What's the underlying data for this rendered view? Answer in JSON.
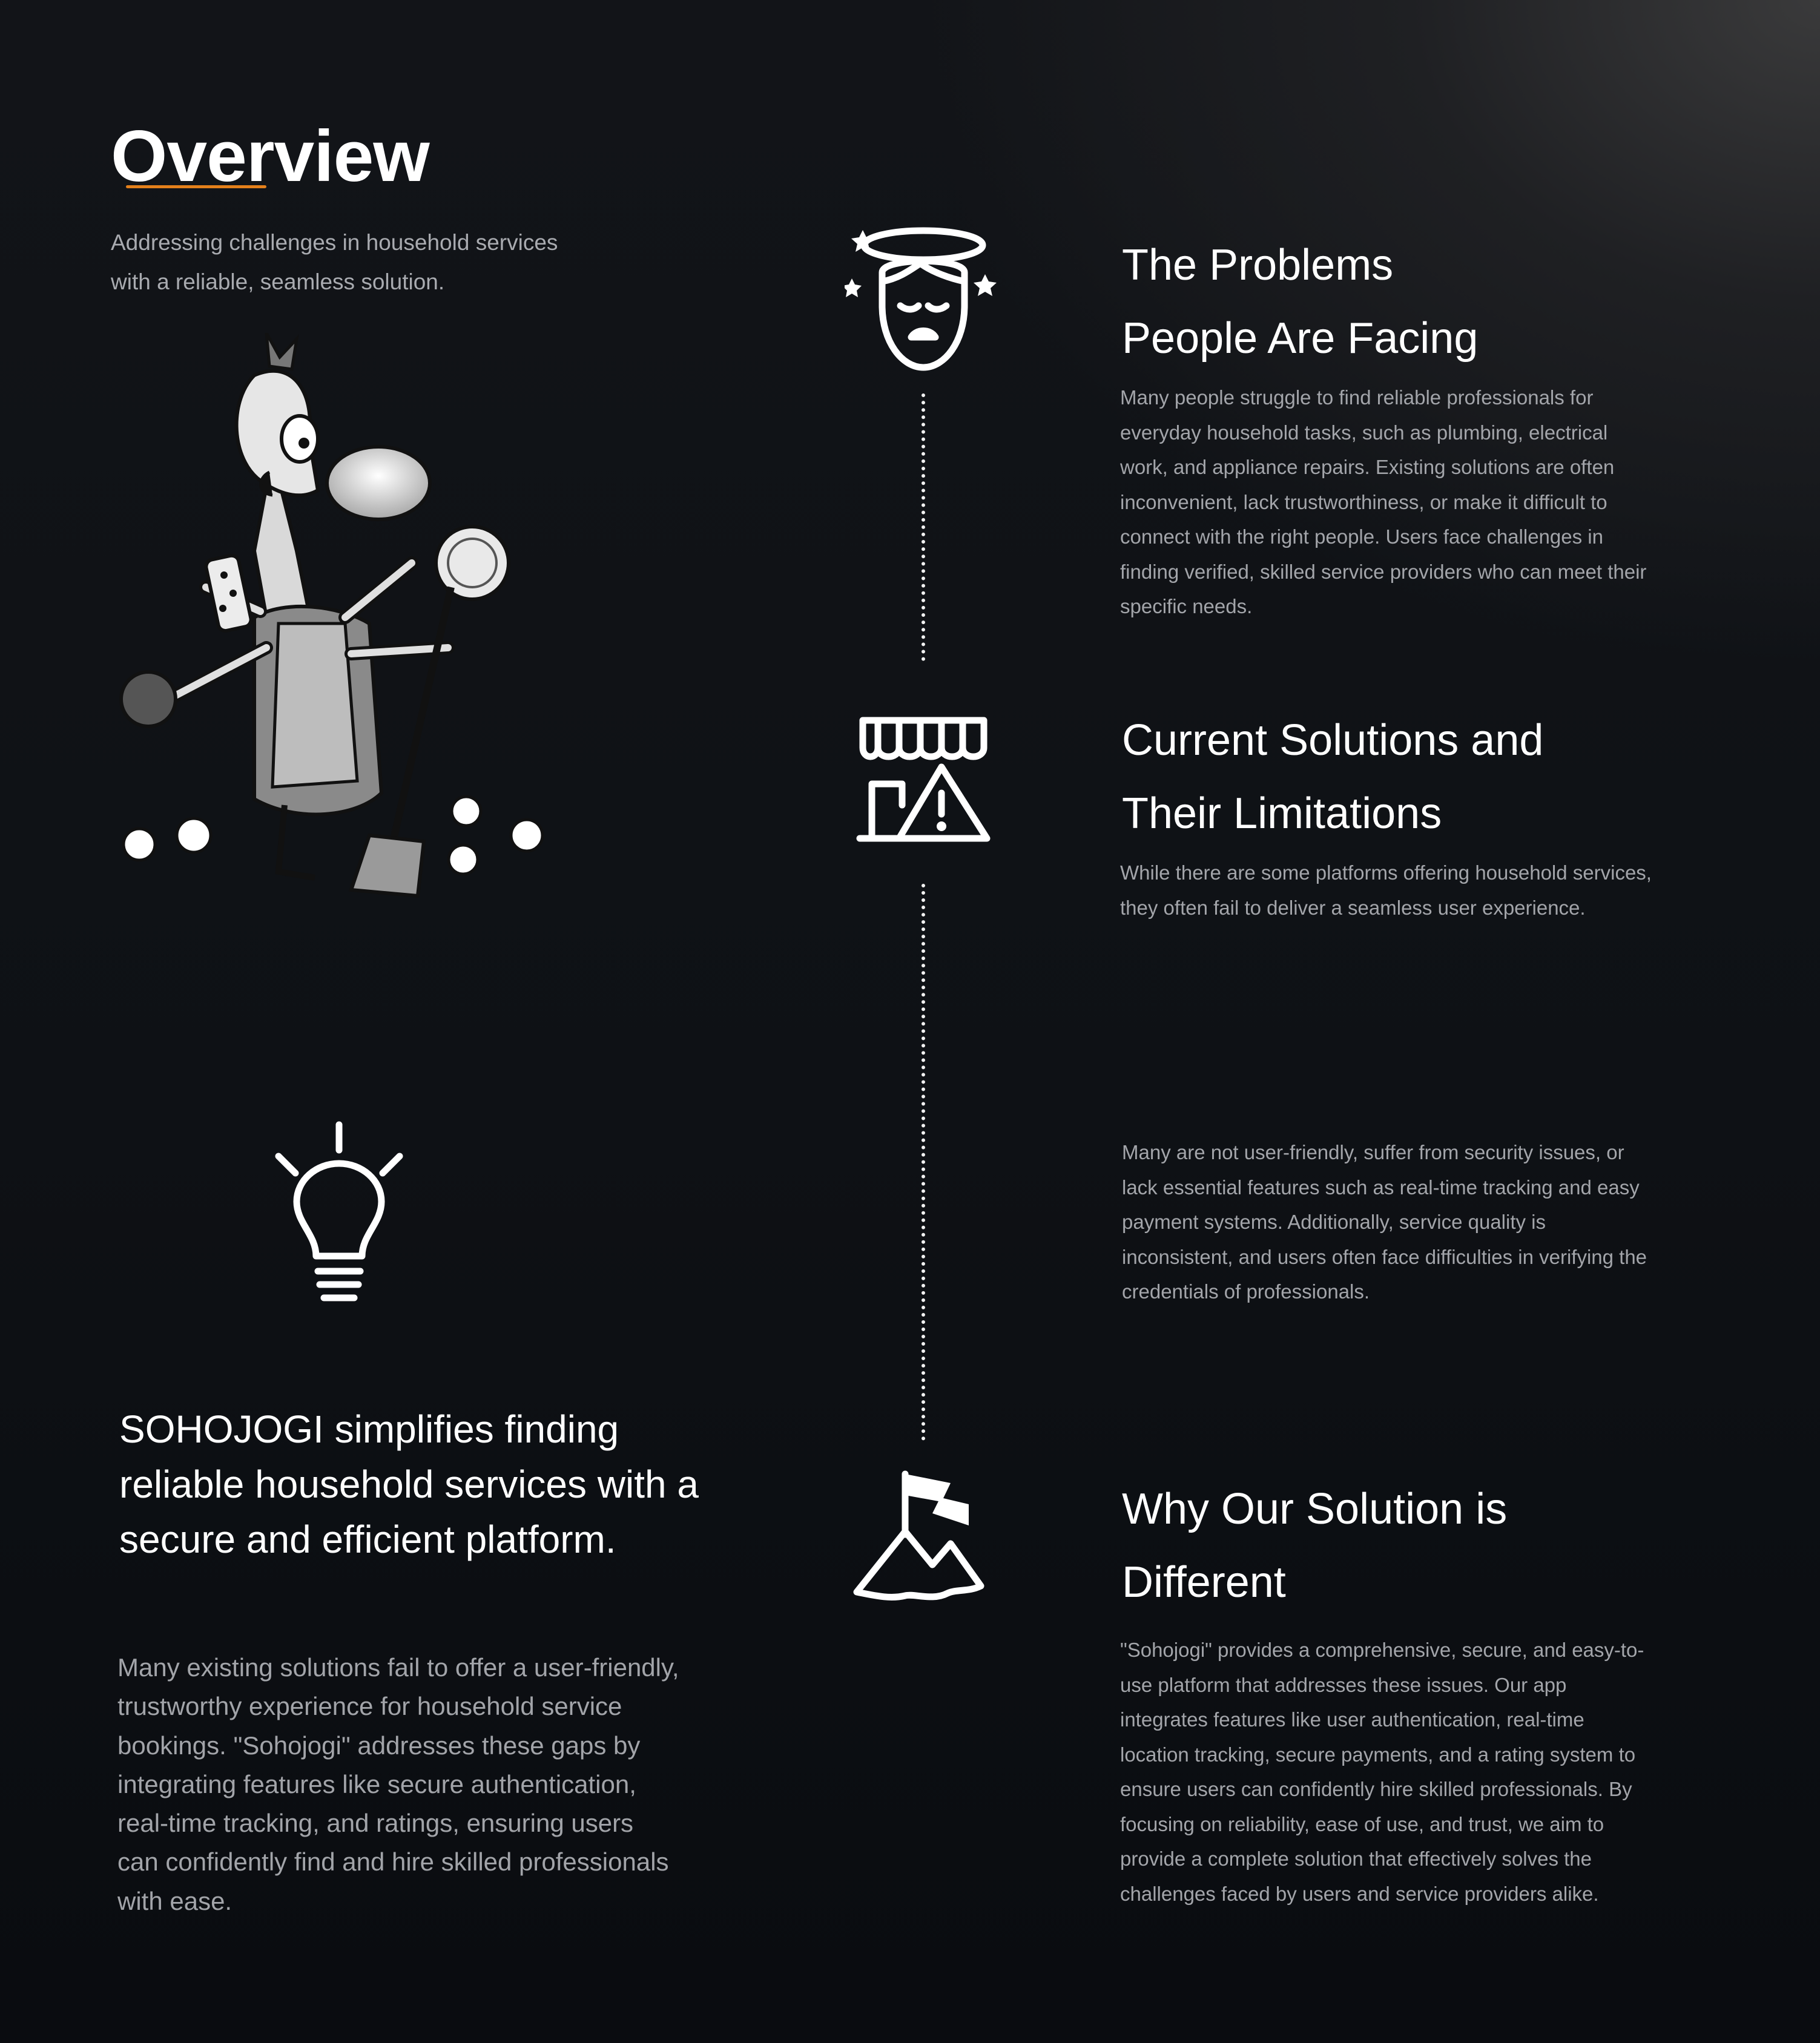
{
  "overview": {
    "title": "Overview",
    "subtitle": "Addressing challenges in household services with a reliable, seamless solution.",
    "accent_color": "#e3801b"
  },
  "illustration": {
    "icon": "multi-armed-man-cleaning-illustration"
  },
  "left_panel": {
    "icon": "lightbulb-icon",
    "highlight": "SOHOJOGI simplifies finding reliable household services with a secure and efficient platform.",
    "paragraph": "Many existing solutions fail to offer a user-friendly, trustworthy experience for household service bookings. \"Sohojogi\" addresses these gaps by integrating features like secure authentication, real-time tracking, and ratings, ensuring users can confidently find and hire skilled professionals with ease."
  },
  "sections": [
    {
      "icon": "dizzy-face-icon",
      "title_line1": "The Problems",
      "title_line2": "People Are Facing",
      "body": "Many people struggle to find reliable professionals for everyday household tasks, such as plumbing, electrical work, and appliance repairs. Existing solutions are often inconvenient, lack trustworthiness, or make it difficult to connect with the right people. Users face challenges in finding verified, skilled service providers who can meet their specific needs."
    },
    {
      "icon": "store-warning-icon",
      "title_line1": "Current Solutions and",
      "title_line2": "Their Limitations",
      "body": "While there are some platforms offering household services, they often fail to deliver a seamless user experience.",
      "body2": "Many are not user-friendly, suffer from security issues, or lack essential features such as real-time tracking and easy payment systems. Additionally, service quality is inconsistent, and users often face difficulties in verifying the credentials of professionals."
    },
    {
      "icon": "mountain-flag-icon",
      "title_line1": "Why Our Solution is",
      "title_line2": "Different",
      "body": "\"Sohojogi\" provides a comprehensive, secure, and easy-to-use platform that addresses these issues. Our app integrates features like user authentication, real-time location tracking, secure payments, and a rating system to ensure users can confidently hire skilled professionals. By focusing on reliability, ease of use, and trust, we aim to provide a complete solution that effectively solves the challenges faced by users and service providers alike."
    }
  ]
}
